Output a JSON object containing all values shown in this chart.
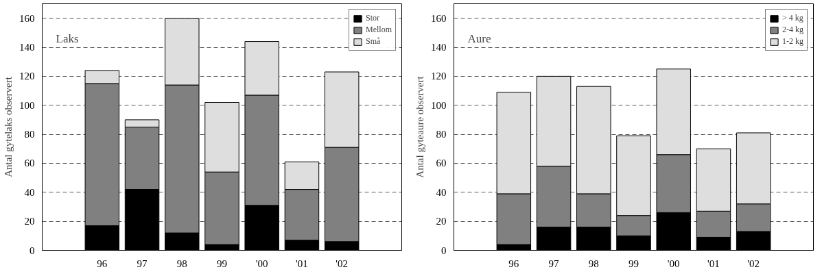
{
  "chart_data": [
    {
      "type": "bar",
      "stacked": true,
      "ylabel": "Antal gytelaks observert",
      "annotations": [
        "Laks"
      ],
      "categories": [
        null,
        "96",
        "97",
        "98",
        "99",
        "'00",
        "'01",
        "'02",
        null
      ],
      "ylim": [
        0,
        170
      ],
      "yticks": [
        0,
        20,
        40,
        60,
        80,
        100,
        120,
        140,
        160
      ],
      "grid": "y",
      "legend": "top right",
      "series": [
        {
          "name": "Stor",
          "color": "#000000",
          "values": [
            0,
            17,
            42,
            12,
            4,
            31,
            7,
            6,
            0
          ]
        },
        {
          "name": "Mellom",
          "color": "#808080",
          "values": [
            0,
            98,
            43,
            102,
            50,
            76,
            35,
            65,
            0
          ]
        },
        {
          "name": "Små",
          "color": "#dedede",
          "values": [
            0,
            9,
            5,
            46,
            48,
            37,
            19,
            52,
            0
          ]
        }
      ]
    },
    {
      "type": "bar",
      "stacked": true,
      "ylabel": "Antal gyteaure observert",
      "annotations": [
        "Aure"
      ],
      "categories": [
        null,
        "96",
        "97",
        "98",
        "99",
        "'00",
        "'01",
        "'02",
        null
      ],
      "ylim": [
        0,
        170
      ],
      "yticks": [
        0,
        20,
        40,
        60,
        80,
        100,
        120,
        140,
        160
      ],
      "grid": "y",
      "legend": "top right",
      "series": [
        {
          "name": "> 4 kg",
          "color": "#000000",
          "values": [
            0,
            4,
            16,
            16,
            10,
            26,
            9,
            13,
            0
          ]
        },
        {
          "name": "2-4 kg",
          "color": "#808080",
          "values": [
            0,
            35,
            42,
            23,
            14,
            40,
            18,
            19,
            0
          ]
        },
        {
          "name": "1-2 kg",
          "color": "#dedede",
          "values": [
            0,
            70,
            62,
            74,
            55,
            59,
            43,
            49,
            0
          ]
        }
      ]
    }
  ]
}
